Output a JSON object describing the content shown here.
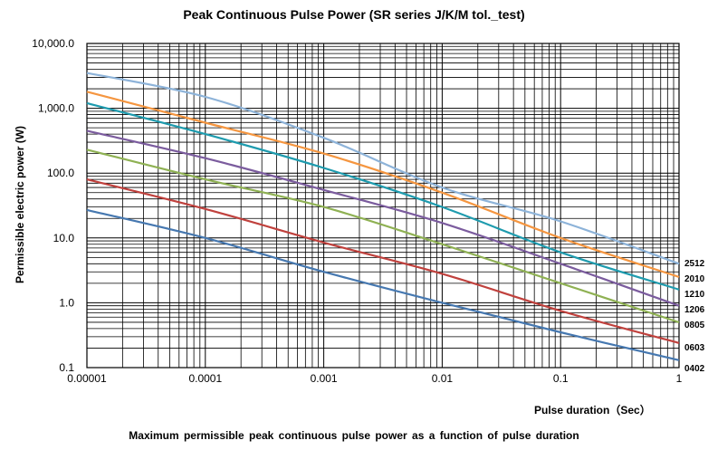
{
  "chart_data": {
    "type": "line",
    "title": "Peak Continuous Pulse Power (SR series J/K/M tol._test)",
    "xlabel": "Pulse duration（Sec）",
    "ylabel": "Permissible electric power (W)",
    "caption": "Maximum permissible peak continuous pulse power as a function of pulse duration",
    "x_scale": "log",
    "y_scale": "log",
    "xlim": [
      1e-05,
      1
    ],
    "ylim": [
      0.1,
      10000
    ],
    "x_ticks": [
      1e-05,
      0.0001,
      0.001,
      0.01,
      0.1,
      1
    ],
    "x_tick_labels": [
      "0.00001",
      "0.0001",
      "0.001",
      "0.01",
      "0.1",
      "1"
    ],
    "y_ticks": [
      0.1,
      1,
      10,
      100,
      1000,
      10000
    ],
    "y_tick_labels": [
      "0.1",
      "1.0",
      "10.0",
      "100.0",
      "1,000.0",
      "10,000.0"
    ],
    "grid": true,
    "legend": "inline labels at right end of each line",
    "series": [
      {
        "name": "2512",
        "color": "#8DB3D9",
        "x": [
          1e-05,
          0.0001,
          0.001,
          0.01,
          0.1,
          1
        ],
        "y": [
          3500,
          1500,
          350,
          60,
          18,
          4
        ]
      },
      {
        "name": "2010",
        "color": "#F59640",
        "x": [
          1e-05,
          0.0001,
          0.001,
          0.01,
          0.1,
          1
        ],
        "y": [
          1800,
          600,
          200,
          50,
          10,
          2.5
        ]
      },
      {
        "name": "1210",
        "color": "#1E9BAE",
        "x": [
          1e-05,
          0.0001,
          0.001,
          0.01,
          0.1,
          1
        ],
        "y": [
          1200,
          400,
          120,
          30,
          6,
          1.6
        ]
      },
      {
        "name": "1206",
        "color": "#7B5C9E",
        "x": [
          1e-05,
          0.0001,
          0.001,
          0.01,
          0.1,
          1
        ],
        "y": [
          450,
          170,
          55,
          17,
          4,
          0.9
        ]
      },
      {
        "name": "0805",
        "color": "#8FB153",
        "x": [
          1e-05,
          0.0001,
          0.001,
          0.01,
          0.1,
          1
        ],
        "y": [
          230,
          80,
          30,
          8,
          2,
          0.5
        ]
      },
      {
        "name": "0603",
        "color": "#C0413D",
        "x": [
          1e-05,
          0.0001,
          0.001,
          0.01,
          0.1,
          1
        ],
        "y": [
          80,
          28,
          8.5,
          2.8,
          0.75,
          0.24
        ]
      },
      {
        "name": "0402",
        "color": "#4678B0",
        "x": [
          1e-05,
          0.0001,
          0.001,
          0.01,
          0.1,
          1
        ],
        "y": [
          27,
          10,
          3,
          1,
          0.35,
          0.13
        ]
      }
    ]
  }
}
